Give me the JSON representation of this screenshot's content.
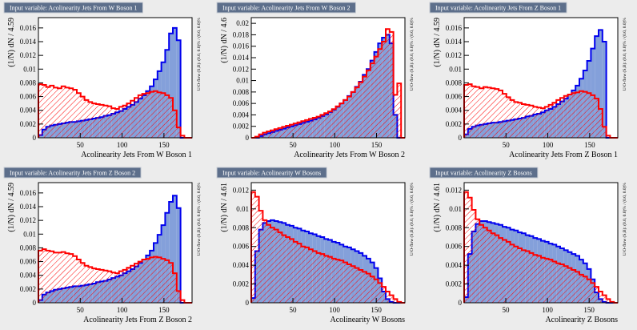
{
  "chart_data": [
    {
      "type": "histogram",
      "title": "Input variable: Acolinearity Jets From W Boson 1",
      "x_label": "Acolinearity Jets From W Boson 1",
      "y_label": "(1/N) dN / 4.59",
      "side_note": "U/O-flow (S,B): (0.0, 0.0)% / (0.0, 0.0)%",
      "bins": [
        0,
        4.59,
        9.18,
        13.77,
        18.36,
        22.95,
        27.54,
        32.13,
        36.72,
        41.31,
        45.9,
        50.49,
        55.08,
        59.67,
        64.26,
        68.85,
        73.44,
        78.03,
        82.62,
        87.21,
        91.8,
        96.39,
        100.98,
        105.57,
        110.16,
        114.75,
        119.34,
        123.93,
        128.52,
        133.11,
        137.7,
        142.29,
        146.88,
        151.47,
        156.06,
        160.65,
        165.24,
        169.83,
        174.42,
        179.01,
        183.6
      ],
      "xlim": [
        0,
        183.6
      ],
      "xticks": [
        50,
        100,
        150
      ],
      "ylim": [
        0,
        0.0175
      ],
      "yticks": [
        0,
        0.002,
        0.004,
        0.006,
        0.008,
        0.01,
        0.012,
        0.014,
        0.016
      ],
      "series": [
        {
          "color": "#0000ee",
          "fill": "#7d9bd8",
          "hatch": false,
          "values": [
            0.0004,
            0.0012,
            0.0016,
            0.0018,
            0.0019,
            0.002,
            0.0021,
            0.0022,
            0.0023,
            0.0023,
            0.0024,
            0.0025,
            0.0026,
            0.0027,
            0.0028,
            0.0029,
            0.003,
            0.0032,
            0.0033,
            0.0035,
            0.0037,
            0.0039,
            0.0042,
            0.0045,
            0.0048,
            0.0052,
            0.0057,
            0.0062,
            0.0068,
            0.0075,
            0.0085,
            0.0097,
            0.011,
            0.0128,
            0.0152,
            0.016,
            0.0142,
            0,
            0,
            0
          ]
        },
        {
          "color": "#ff0000",
          "fill": "#ff0000",
          "hatch": true,
          "values": [
            0.0078,
            0.0077,
            0.0074,
            0.0076,
            0.0073,
            0.0072,
            0.0075,
            0.0073,
            0.0072,
            0.007,
            0.0065,
            0.006,
            0.0055,
            0.0052,
            0.005,
            0.0049,
            0.0048,
            0.0047,
            0.0046,
            0.0043,
            0.0042,
            0.0045,
            0.0047,
            0.005,
            0.0054,
            0.0058,
            0.0062,
            0.0064,
            0.0065,
            0.0067,
            0.0068,
            0.0066,
            0.0065,
            0.0062,
            0.0058,
            0.004,
            0.0015,
            0.0003,
            0,
            0
          ]
        }
      ]
    },
    {
      "type": "histogram",
      "title": "Input variable: Acolinearity Jets From W Boson 2",
      "x_label": "Acolinearity Jets From W Boson 2",
      "y_label": "(1/N) dN / 4.6",
      "side_note": "U/O-flow (S,B): (0.0, 0.0)% / (0.0, 0.0)%",
      "bins": [
        0,
        4.6,
        9.2,
        13.8,
        18.4,
        23,
        27.6,
        32.2,
        36.8,
        41.4,
        46,
        50.6,
        55.2,
        59.8,
        64.4,
        69,
        73.6,
        78.2,
        82.8,
        87.4,
        92,
        96.6,
        101.2,
        105.8,
        110.4,
        115,
        119.6,
        124.2,
        128.8,
        133.4,
        138,
        142.6,
        147.2,
        151.8,
        156.4,
        161,
        165.6,
        170.2,
        174.8,
        179.4,
        184
      ],
      "xlim": [
        0,
        184
      ],
      "xticks": [
        50,
        100,
        150
      ],
      "ylim": [
        0,
        0.021
      ],
      "yticks": [
        0,
        0.002,
        0.004,
        0.006,
        0.008,
        0.01,
        0.012,
        0.014,
        0.016,
        0.018,
        0.02
      ],
      "series": [
        {
          "color": "#0000ee",
          "fill": "#7d9bd8",
          "hatch": false,
          "values": [
            0,
            0,
            0.0003,
            0.0006,
            0.0008,
            0.001,
            0.0012,
            0.0014,
            0.0016,
            0.0018,
            0.002,
            0.0022,
            0.0024,
            0.0026,
            0.0028,
            0.003,
            0.0032,
            0.0035,
            0.0038,
            0.0041,
            0.0045,
            0.0049,
            0.0054,
            0.006,
            0.0066,
            0.0073,
            0.008,
            0.0089,
            0.0098,
            0.011,
            0.012,
            0.0135,
            0.015,
            0.0165,
            0.0175,
            0.018,
            0.0165,
            0.004,
            0,
            0
          ]
        },
        {
          "color": "#ff0000",
          "fill": "#ff0000",
          "hatch": true,
          "values": [
            0,
            0.0002,
            0.0006,
            0.0009,
            0.0011,
            0.0013,
            0.0015,
            0.0017,
            0.0019,
            0.0021,
            0.0023,
            0.0025,
            0.0027,
            0.0029,
            0.0031,
            0.0033,
            0.0035,
            0.0037,
            0.004,
            0.0043,
            0.0046,
            0.005,
            0.0055,
            0.006,
            0.0066,
            0.0072,
            0.008,
            0.0088,
            0.0097,
            0.0107,
            0.0118,
            0.013,
            0.0142,
            0.0155,
            0.0168,
            0.019,
            0.0185,
            0.0075,
            0.0095,
            0
          ]
        }
      ]
    },
    {
      "type": "histogram",
      "title": "Input variable: Acolinearity Jets From Z Boson 1",
      "x_label": "Acolinearity Jets From Z Boson 1",
      "y_label": "(1/N) dN / 4.59",
      "side_note": "U/O-flow (S,B): (0.0, 0.0)% / (0.0, 0.0)%",
      "bins": [
        0,
        4.59,
        9.18,
        13.77,
        18.36,
        22.95,
        27.54,
        32.13,
        36.72,
        41.31,
        45.9,
        50.49,
        55.08,
        59.67,
        64.26,
        68.85,
        73.44,
        78.03,
        82.62,
        87.21,
        91.8,
        96.39,
        100.98,
        105.57,
        110.16,
        114.75,
        119.34,
        123.93,
        128.52,
        133.11,
        137.7,
        142.29,
        146.88,
        151.47,
        156.06,
        160.65,
        165.24,
        169.83,
        174.42,
        179.01,
        183.6
      ],
      "xlim": [
        0,
        183.6
      ],
      "xticks": [
        50,
        100,
        150
      ],
      "ylim": [
        0,
        0.0175
      ],
      "yticks": [
        0,
        0.002,
        0.004,
        0.006,
        0.008,
        0.01,
        0.012,
        0.014,
        0.016
      ],
      "series": [
        {
          "color": "#0000ee",
          "fill": "#7d9bd8",
          "hatch": false,
          "values": [
            0.0005,
            0.0013,
            0.0016,
            0.0018,
            0.0019,
            0.002,
            0.0021,
            0.0022,
            0.0022,
            0.0023,
            0.0024,
            0.0025,
            0.0026,
            0.0027,
            0.0028,
            0.0029,
            0.0031,
            0.0032,
            0.0034,
            0.0035,
            0.0037,
            0.004,
            0.0042,
            0.0045,
            0.0049,
            0.0053,
            0.0057,
            0.0063,
            0.0069,
            0.0076,
            0.0086,
            0.0098,
            0.0112,
            0.013,
            0.0148,
            0.0157,
            0.014,
            0,
            0,
            0
          ]
        },
        {
          "color": "#ff0000",
          "fill": "#ff0000",
          "hatch": true,
          "values": [
            0.0077,
            0.0078,
            0.0075,
            0.0074,
            0.0072,
            0.0074,
            0.0073,
            0.0072,
            0.0071,
            0.0069,
            0.0064,
            0.0059,
            0.0055,
            0.0052,
            0.0051,
            0.0049,
            0.0048,
            0.0047,
            0.0045,
            0.0044,
            0.0043,
            0.0045,
            0.0048,
            0.0051,
            0.0055,
            0.0058,
            0.0061,
            0.0063,
            0.0065,
            0.0066,
            0.0068,
            0.0067,
            0.0065,
            0.0062,
            0.0057,
            0.0042,
            0.0016,
            0.0003,
            0,
            0
          ]
        }
      ]
    },
    {
      "type": "histogram",
      "title": "Input variable: Acolinearity Jets From Z Boson 2",
      "x_label": "Acolinearity Jets From Z Boson 2",
      "y_label": "(1/N) dN / 4.59",
      "side_note": "U/O-flow (S,B): (0.0, 0.0)% / (0.0, 0.0)%",
      "bins": [
        0,
        4.59,
        9.18,
        13.77,
        18.36,
        22.95,
        27.54,
        32.13,
        36.72,
        41.31,
        45.9,
        50.49,
        55.08,
        59.67,
        64.26,
        68.85,
        73.44,
        78.03,
        82.62,
        87.21,
        91.8,
        96.39,
        100.98,
        105.57,
        110.16,
        114.75,
        119.34,
        123.93,
        128.52,
        133.11,
        137.7,
        142.29,
        146.88,
        151.47,
        156.06,
        160.65,
        165.24,
        169.83,
        174.42,
        179.01,
        183.6
      ],
      "xlim": [
        0,
        183.6
      ],
      "xticks": [
        50,
        100,
        150
      ],
      "ylim": [
        0,
        0.0175
      ],
      "yticks": [
        0,
        0.002,
        0.004,
        0.006,
        0.008,
        0.01,
        0.012,
        0.014,
        0.016
      ],
      "series": [
        {
          "color": "#0000ee",
          "fill": "#7d9bd8",
          "hatch": false,
          "values": [
            0.0004,
            0.0012,
            0.0015,
            0.0017,
            0.0019,
            0.002,
            0.0021,
            0.0022,
            0.0023,
            0.0024,
            0.0024,
            0.0025,
            0.0026,
            0.0027,
            0.0028,
            0.003,
            0.0031,
            0.0032,
            0.0034,
            0.0036,
            0.0038,
            0.004,
            0.0043,
            0.0046,
            0.0049,
            0.0053,
            0.0058,
            0.0063,
            0.0069,
            0.0076,
            0.0087,
            0.0099,
            0.0113,
            0.0131,
            0.0147,
            0.0156,
            0.0138,
            0,
            0,
            0
          ]
        },
        {
          "color": "#ff0000",
          "fill": "#ff0000",
          "hatch": true,
          "values": [
            0.0076,
            0.0078,
            0.0076,
            0.0075,
            0.0073,
            0.0073,
            0.0074,
            0.0072,
            0.0071,
            0.0068,
            0.0063,
            0.0058,
            0.0054,
            0.0052,
            0.005,
            0.0049,
            0.0048,
            0.0047,
            0.0046,
            0.0044,
            0.0043,
            0.0046,
            0.0048,
            0.0051,
            0.0054,
            0.0057,
            0.006,
            0.0063,
            0.0064,
            0.0066,
            0.0067,
            0.0066,
            0.0064,
            0.0062,
            0.0058,
            0.0043,
            0.0017,
            0.0004,
            0,
            0
          ]
        }
      ]
    },
    {
      "type": "histogram",
      "title": "Input variable: Acolinearity W Bosons",
      "x_label": "Acolinearity W Bosons",
      "y_label": "(1/N) dN / 4.61",
      "side_note": "U/O-flow (S,B): (0.0, 0.0)% / (0.0, 0.0)%",
      "bins": [
        0,
        4.61,
        9.22,
        13.83,
        18.44,
        23.05,
        27.66,
        32.27,
        36.88,
        41.49,
        46.1,
        50.71,
        55.32,
        59.93,
        64.54,
        69.15,
        73.76,
        78.37,
        82.98,
        87.59,
        92.2,
        96.81,
        101.42,
        106.03,
        110.64,
        115.25,
        119.86,
        124.47,
        129.08,
        133.69,
        138.3,
        142.91,
        147.52,
        152.13,
        156.74,
        161.35,
        165.96,
        170.57,
        175.18,
        179.79,
        184.4
      ],
      "xlim": [
        0,
        184.4
      ],
      "xticks": [
        50,
        100,
        150
      ],
      "ylim": [
        0,
        0.0128
      ],
      "yticks": [
        0,
        0.002,
        0.004,
        0.006,
        0.008,
        0.01,
        0.012
      ],
      "series": [
        {
          "color": "#0000ee",
          "fill": "#7d9bd8",
          "hatch": false,
          "values": [
            0.0005,
            0.0055,
            0.0078,
            0.0085,
            0.0087,
            0.0088,
            0.0087,
            0.0086,
            0.0085,
            0.0083,
            0.0082,
            0.008,
            0.0079,
            0.0077,
            0.0076,
            0.0074,
            0.0073,
            0.0071,
            0.007,
            0.0068,
            0.0067,
            0.0065,
            0.0064,
            0.0062,
            0.006,
            0.0059,
            0.0057,
            0.0055,
            0.0053,
            0.005,
            0.0047,
            0.0043,
            0.0037,
            0.0026,
            0.0012,
            0.0004,
            0.0001,
            0,
            0,
            0
          ]
        },
        {
          "color": "#ff0000",
          "fill": "#ff0000",
          "hatch": true,
          "values": [
            0.0118,
            0.0113,
            0.0098,
            0.0088,
            0.0083,
            0.008,
            0.0078,
            0.0075,
            0.0072,
            0.007,
            0.0068,
            0.0065,
            0.0063,
            0.006,
            0.0059,
            0.0057,
            0.0055,
            0.0053,
            0.0052,
            0.005,
            0.0049,
            0.0047,
            0.0046,
            0.0045,
            0.0043,
            0.0041,
            0.0039,
            0.0037,
            0.0035,
            0.0033,
            0.0031,
            0.0028,
            0.0025,
            0.0021,
            0.0017,
            0.0012,
            0.0008,
            0.0004,
            0.0001,
            0
          ]
        }
      ]
    },
    {
      "type": "histogram",
      "title": "Input variable: Acolinearity Z Bosons",
      "x_label": "Acolinearity Z Bosons",
      "y_label": "(1/N) dN / 4.61",
      "side_note": "U/O-flow (S,B): (0.0, 0.0)% / (0.0, 0.0)%",
      "bins": [
        0,
        4.61,
        9.22,
        13.83,
        18.44,
        23.05,
        27.66,
        32.27,
        36.88,
        41.49,
        46.1,
        50.71,
        55.32,
        59.93,
        64.54,
        69.15,
        73.76,
        78.37,
        82.98,
        87.59,
        92.2,
        96.81,
        101.42,
        106.03,
        110.64,
        115.25,
        119.86,
        124.47,
        129.08,
        133.69,
        138.3,
        142.91,
        147.52,
        152.13,
        156.74,
        161.35,
        165.96,
        170.57,
        175.18,
        179.79,
        184.4
      ],
      "xlim": [
        0,
        184.4
      ],
      "xticks": [
        50,
        100,
        150
      ],
      "ylim": [
        0,
        0.0128
      ],
      "yticks": [
        0,
        0.002,
        0.004,
        0.006,
        0.008,
        0.01,
        0.012
      ],
      "series": [
        {
          "color": "#0000ee",
          "fill": "#7d9bd8",
          "hatch": false,
          "values": [
            0.0006,
            0.0052,
            0.0076,
            0.0084,
            0.0087,
            0.0087,
            0.0086,
            0.0085,
            0.0084,
            0.0083,
            0.0081,
            0.008,
            0.0078,
            0.0077,
            0.0075,
            0.0074,
            0.0072,
            0.0071,
            0.0069,
            0.0068,
            0.0066,
            0.0065,
            0.0063,
            0.0062,
            0.006,
            0.0058,
            0.0056,
            0.0054,
            0.0052,
            0.005,
            0.0046,
            0.0042,
            0.0036,
            0.0025,
            0.0011,
            0.0004,
            0.0001,
            0,
            0,
            0
          ]
        },
        {
          "color": "#ff0000",
          "fill": "#ff0000",
          "hatch": true,
          "values": [
            0.0118,
            0.0112,
            0.0099,
            0.0089,
            0.0083,
            0.008,
            0.0077,
            0.0074,
            0.0072,
            0.0069,
            0.0067,
            0.0065,
            0.0062,
            0.006,
            0.0058,
            0.0056,
            0.0055,
            0.0053,
            0.0051,
            0.005,
            0.0048,
            0.0047,
            0.0046,
            0.0044,
            0.0042,
            0.0041,
            0.0039,
            0.0037,
            0.0035,
            0.0033,
            0.003,
            0.0028,
            0.0025,
            0.0021,
            0.0017,
            0.0012,
            0.0008,
            0.0004,
            0.0001,
            0
          ]
        }
      ]
    }
  ]
}
